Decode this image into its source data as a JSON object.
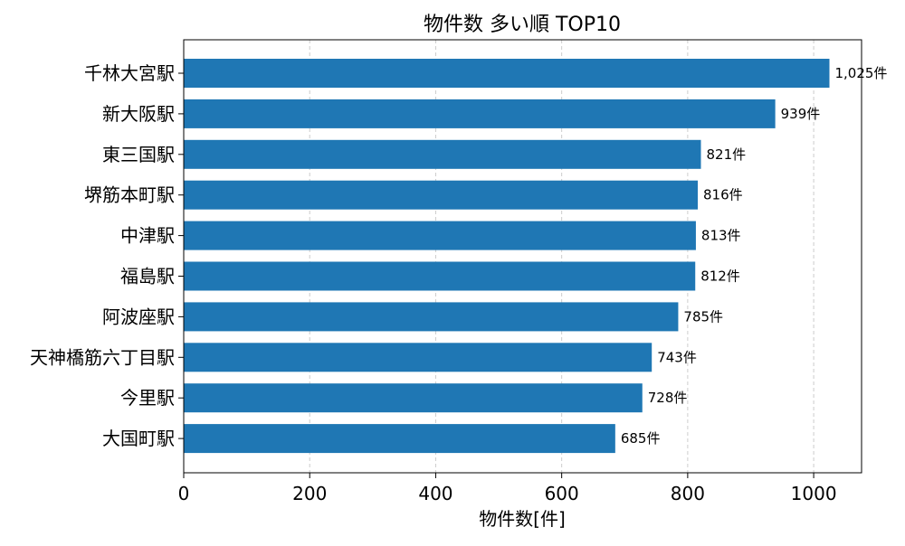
{
  "chart_data": {
    "type": "bar",
    "orientation": "horizontal",
    "title": "物件数 多い順 TOP10",
    "xlabel": "物件数[件]",
    "ylabel": "",
    "xlim": [
      0,
      1076
    ],
    "x_ticks": [
      0,
      200,
      400,
      600,
      800,
      1000
    ],
    "x_tick_labels": [
      "0",
      "200",
      "400",
      "600",
      "800",
      "1000"
    ],
    "categories": [
      "千林大宮駅",
      "新大阪駅",
      "東三国駅",
      "堺筋本町駅",
      "中津駅",
      "福島駅",
      "阿波座駅",
      "天神橋筋六丁目駅",
      "今里駅",
      "大国町駅"
    ],
    "values": [
      1025,
      939,
      821,
      816,
      813,
      812,
      785,
      743,
      728,
      685
    ],
    "data_labels": [
      "1,025件",
      "939件",
      "821件",
      "816件",
      "813件",
      "812件",
      "785件",
      "743件",
      "728件",
      "685件"
    ],
    "grid": {
      "x": true,
      "y": false,
      "style": "dashed"
    },
    "legend": false,
    "colors": {
      "bar": "#1f77b4",
      "grid": "#cccccc",
      "axis": "#000000",
      "background": "#ffffff"
    }
  }
}
